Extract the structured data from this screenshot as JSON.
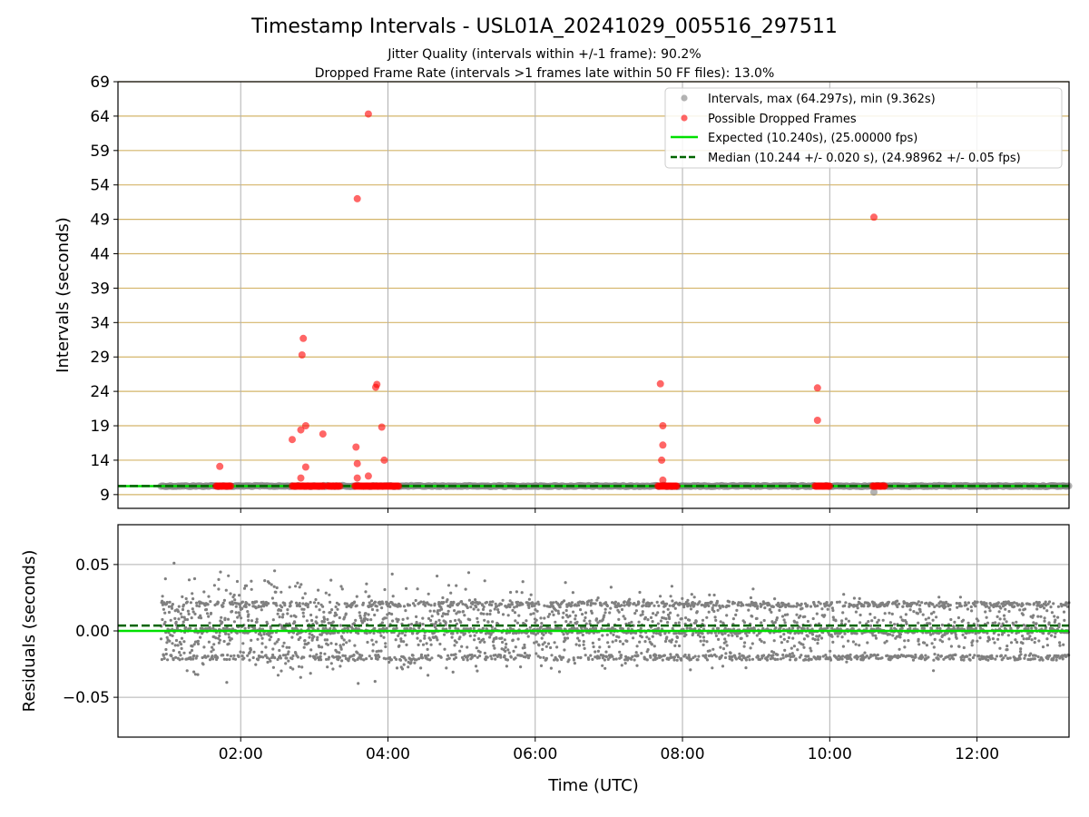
{
  "figure": {
    "title": "Timestamp Intervals - USL01A_20241029_005516_297511",
    "subtitle_1": "Jitter Quality (intervals within +/-1 frame): 90.2%",
    "subtitle_2": "Dropped Frame Rate (intervals >1 frames late within 50 FF files): 13.0%"
  },
  "colors": {
    "intervals": "#808080",
    "dropped": "#ff0000",
    "expected": "#00e000",
    "median": "#006400",
    "hgrid_top": "#d4b56a",
    "grid": "#b0b0b0"
  },
  "chart_data": [
    {
      "type": "scatter",
      "ylabel": "Intervals (seconds)",
      "xlim": [
        "00:20",
        "13:15"
      ],
      "ylim": [
        7,
        69
      ],
      "y_ticks": [
        "9",
        "14",
        "19",
        "24",
        "29",
        "34",
        "39",
        "44",
        "49",
        "54",
        "59",
        "64",
        "69"
      ],
      "grid": true,
      "legend_position": "top-right",
      "legend": [
        "Intervals, max (64.297s), min (9.362s)",
        "Possible Dropped Frames",
        "Expected (10.240s), (25.00000 fps)",
        "Median (10.244 +/- 0.020 s), (24.98962 +/- 0.05 fps)"
      ],
      "series": [
        {
          "name": "Intervals, max (64.297s), min (9.362s)",
          "x_range": [
            "00:55",
            "13:15"
          ],
          "y": 10.24,
          "min_point": {
            "x": "10:36",
            "y": 9.362
          }
        },
        {
          "name": "Possible Dropped Frames",
          "points": [
            {
              "x": "01:43",
              "y": 13.1
            },
            {
              "x": "02:42",
              "y": 17.0
            },
            {
              "x": "02:49",
              "y": 18.4
            },
            {
              "x": "02:49",
              "y": 11.4
            },
            {
              "x": "02:50",
              "y": 29.3
            },
            {
              "x": "02:51",
              "y": 31.7
            },
            {
              "x": "02:53",
              "y": 19.0
            },
            {
              "x": "02:53",
              "y": 13.0
            },
            {
              "x": "03:07",
              "y": 17.8
            },
            {
              "x": "03:35",
              "y": 52.0
            },
            {
              "x": "03:34",
              "y": 15.9
            },
            {
              "x": "03:35",
              "y": 13.5
            },
            {
              "x": "03:35",
              "y": 11.4
            },
            {
              "x": "03:44",
              "y": 64.3
            },
            {
              "x": "03:44",
              "y": 11.7
            },
            {
              "x": "03:50",
              "y": 24.6
            },
            {
              "x": "03:51",
              "y": 25.0
            },
            {
              "x": "03:55",
              "y": 18.8
            },
            {
              "x": "03:57",
              "y": 14.0
            },
            {
              "x": "07:42",
              "y": 25.1
            },
            {
              "x": "07:44",
              "y": 19.0
            },
            {
              "x": "07:44",
              "y": 16.2
            },
            {
              "x": "07:43",
              "y": 14.0
            },
            {
              "x": "07:44",
              "y": 11.1
            },
            {
              "x": "09:50",
              "y": 24.5
            },
            {
              "x": "09:50",
              "y": 19.8
            },
            {
              "x": "10:36",
              "y": 49.3
            }
          ],
          "baseline_clusters": [
            [
              "01:40",
              "01:52"
            ],
            [
              "02:42",
              "03:08"
            ],
            [
              "03:11",
              "03:21"
            ],
            [
              "03:33",
              "04:09"
            ],
            [
              "07:40",
              "07:56"
            ],
            [
              "09:48",
              "10:00"
            ],
            [
              "10:35",
              "10:45"
            ]
          ],
          "baseline_y": 10.24
        },
        {
          "name": "Expected (10.240s), (25.00000 fps)",
          "y": 10.24,
          "style": "solid"
        },
        {
          "name": "Median (10.244 +/- 0.020 s), (24.98962 +/- 0.05 fps)",
          "y": 10.244,
          "style": "dashed"
        }
      ]
    },
    {
      "type": "scatter",
      "xlabel": "Time (UTC)",
      "ylabel": "Residuals (seconds)",
      "xlim": [
        "00:20",
        "13:15"
      ],
      "ylim": [
        -0.08,
        0.08
      ],
      "x_ticks": [
        "02:00",
        "04:00",
        "06:00",
        "08:00",
        "10:00",
        "12:00"
      ],
      "y_ticks": [
        "0.05",
        "0.00",
        "−0.05"
      ],
      "grid": true,
      "series": [
        {
          "name": "",
          "x_range": [
            "00:55",
            "13:15"
          ],
          "y_center": 0.003,
          "spread_start": 0.045,
          "spread_end": 0.025,
          "band_levels": [
            0.02,
            0.0,
            -0.02
          ],
          "approx_count": 3600
        }
      ],
      "reference_lines": [
        {
          "y": 0.0,
          "style": "solid",
          "color": "expected"
        },
        {
          "y": 0.004,
          "style": "dashed",
          "color": "median"
        }
      ]
    }
  ]
}
